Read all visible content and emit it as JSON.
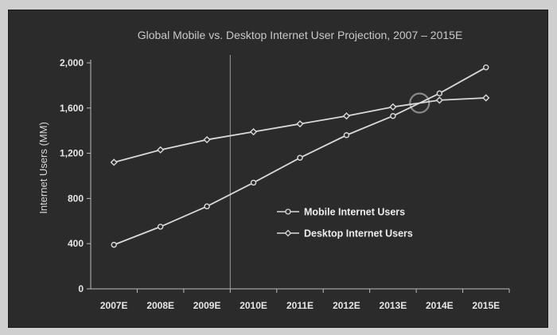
{
  "chart_data": {
    "type": "line",
    "title": "Global Mobile vs. Desktop Internet User Projection, 2007 – 2015E",
    "xlabel": "",
    "ylabel": "Internet Users (MM)",
    "categories": [
      "2007E",
      "2008E",
      "2009E",
      "2010E",
      "2011E",
      "2012E",
      "2013E",
      "2014E",
      "2015E"
    ],
    "yticks": [
      "0",
      "400",
      "800",
      "1,200",
      "1,600",
      "2,000"
    ],
    "ylim": [
      0,
      2000
    ],
    "grid": false,
    "legend_position": "right",
    "series": [
      {
        "name": "Mobile Internet Users",
        "marker": "circle",
        "values": [
          390,
          550,
          730,
          940,
          1160,
          1360,
          1530,
          1730,
          1960
        ]
      },
      {
        "name": "Desktop Internet Users",
        "marker": "diamond",
        "values": [
          1120,
          1230,
          1320,
          1390,
          1460,
          1530,
          1610,
          1670,
          1690
        ]
      }
    ],
    "annotations": {
      "vertical_marker_after_category": "2009E",
      "crossover_circle_between": [
        "2013E",
        "2014E"
      ]
    },
    "colors": {
      "background": "#2b2b2b",
      "lines": "#d9d9d9",
      "axes": "#bdbdbd",
      "annotation_circle": "#8a8a8a"
    }
  }
}
